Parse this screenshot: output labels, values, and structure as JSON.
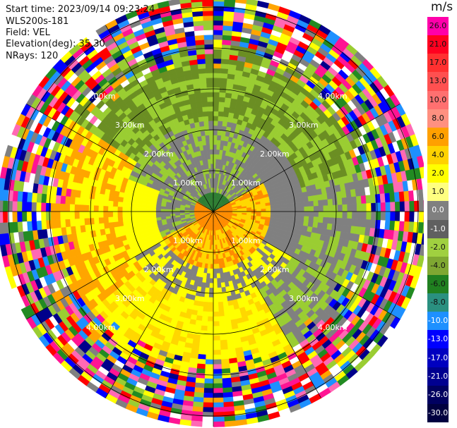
{
  "header": {
    "start_time": "Start time: 2023/09/14 09:23:24",
    "site": "WLS200s-181",
    "field": "Field: VEL",
    "elevation": "Elevation(deg): 35.30",
    "nrays": "NRays: 120"
  },
  "colorbar": {
    "unit": "m/s",
    "levels": [
      {
        "label": "26.0",
        "color": "#ff00aa"
      },
      {
        "label": "21.0",
        "color": "#ff0020"
      },
      {
        "label": "17.0",
        "color": "#ff3030"
      },
      {
        "label": "13.0",
        "color": "#ff5050"
      },
      {
        "label": "10.0",
        "color": "#ff7070"
      },
      {
        "label": "8.0",
        "color": "#ff9080"
      },
      {
        "label": "6.0",
        "color": "#ffa000"
      },
      {
        "label": "4.0",
        "color": "#ffd200"
      },
      {
        "label": "2.0",
        "color": "#ffff00"
      },
      {
        "label": "1.0",
        "color": "#ffff80"
      },
      {
        "label": "0.0",
        "color": "#808080"
      },
      {
        "label": "-1.0",
        "color": "#606060"
      },
      {
        "label": "-2.0",
        "color": "#a0d040"
      },
      {
        "label": "-4.0",
        "color": "#7fa832"
      },
      {
        "label": "-6.0",
        "color": "#208020"
      },
      {
        "label": "-8.0",
        "color": "#2a9080"
      },
      {
        "label": "-10.0",
        "color": "#1e90ff"
      },
      {
        "label": "-13.0",
        "color": "#0000ff"
      },
      {
        "label": "-17.0",
        "color": "#0000c0"
      },
      {
        "label": "-21.0",
        "color": "#000090"
      },
      {
        "label": "-26.0",
        "color": "#000060"
      },
      {
        "label": "-30.0",
        "color": "#000040"
      }
    ]
  },
  "range_rings_km": [
    "1.00km",
    "2.00km",
    "3.00km",
    "4.00km"
  ],
  "noise_colors": [
    "#ff1493",
    "#ffff00",
    "#0000ff",
    "#228b22",
    "#ff0000",
    "#808080",
    "#ffa500",
    "#00008b",
    "#9acd32",
    "#ffffff",
    "#ff69b4",
    "#1e90ff"
  ]
}
